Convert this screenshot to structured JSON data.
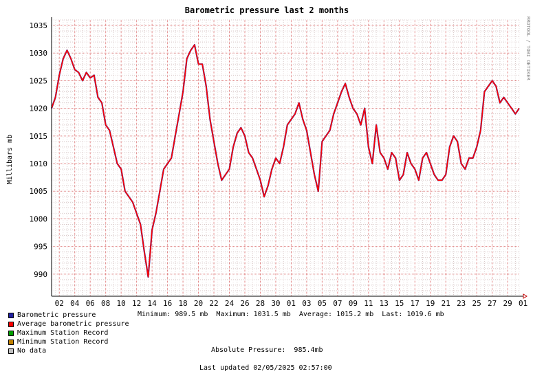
{
  "chart_data": {
    "type": "line",
    "title": "Barometric pressure last 2 months",
    "ylabel": "Millibars   mb",
    "watermark": "RRDTOOL / TOBI OETIKER",
    "ylim": [
      986,
      1036
    ],
    "yticks": [
      990,
      995,
      1000,
      1005,
      1010,
      1015,
      1020,
      1025,
      1030,
      1035
    ],
    "xlim": [
      0,
      60.5
    ],
    "x_tick_labels": [
      "02",
      "04",
      "06",
      "08",
      "10",
      "12",
      "14",
      "16",
      "18",
      "20",
      "22",
      "24",
      "26",
      "28",
      "30",
      "01",
      "03",
      "05",
      "07",
      "09",
      "11",
      "13",
      "15",
      "17",
      "19",
      "21",
      "23",
      "25",
      "27",
      "29",
      "01"
    ],
    "series": [
      {
        "name": "Barometric pressure",
        "color": "#2020a0",
        "x": [
          0,
          0.5,
          1,
          1.5,
          2,
          2.5,
          3,
          3.5,
          4,
          4.5,
          5,
          5.5,
          6,
          6.5,
          7,
          7.5,
          8,
          8.5,
          9,
          9.5,
          10,
          10.5,
          11,
          11.5,
          12,
          12.5,
          13,
          13.5,
          14,
          14.5,
          15,
          15.5,
          16,
          16.5,
          17,
          17.5,
          18,
          18.5,
          19,
          19.5,
          20,
          20.5,
          21,
          21.5,
          22,
          22.5,
          23,
          23.5,
          24,
          24.5,
          25,
          25.5,
          26,
          26.5,
          27,
          27.5,
          28,
          28.5,
          29,
          29.5,
          30,
          30.5,
          31,
          31.5,
          32,
          32.5,
          33,
          33.5,
          34,
          34.5,
          35,
          35.5,
          36,
          36.5,
          37,
          37.5,
          38,
          38.5,
          39,
          39.5,
          40,
          40.5,
          41,
          41.5,
          42,
          42.5,
          43,
          43.5,
          44,
          44.5,
          45,
          45.5,
          46,
          46.5,
          47,
          47.5,
          48,
          48.5,
          49,
          49.5,
          50,
          50.5,
          51,
          51.5,
          52,
          52.5,
          53,
          53.5,
          54,
          54.5,
          55,
          55.5,
          56,
          56.5,
          57,
          57.5,
          58,
          58.5,
          59,
          59.5,
          60,
          60.5
        ],
        "values": [
          1020,
          1022,
          1026,
          1029,
          1030.5,
          1029,
          1027,
          1026.5,
          1025,
          1026.5,
          1025.5,
          1026,
          1022,
          1021,
          1017,
          1016,
          1013,
          1010,
          1009,
          1005,
          1004,
          1003,
          1001,
          999,
          994,
          989.5,
          998,
          1001,
          1005,
          1009,
          1010,
          1011,
          1015,
          1019,
          1023,
          1029,
          1030.5,
          1031.5,
          1028,
          1028,
          1024,
          1018,
          1014,
          1010,
          1007,
          1008,
          1009,
          1013,
          1015.5,
          1016.5,
          1015,
          1012,
          1011,
          1009,
          1007,
          1004,
          1006,
          1009,
          1011,
          1010,
          1013,
          1017,
          1018,
          1019,
          1021,
          1018,
          1016,
          1012,
          1008,
          1005,
          1014,
          1015,
          1016,
          1019,
          1021,
          1023,
          1024.5,
          1022,
          1020,
          1019,
          1017,
          1020,
          1013,
          1010,
          1017,
          1012,
          1011,
          1009,
          1012,
          1011,
          1007,
          1008,
          1012,
          1010,
          1009,
          1007,
          1011,
          1012,
          1010,
          1008,
          1007,
          1007,
          1008,
          1013,
          1015,
          1014,
          1010,
          1009,
          1011,
          1011,
          1013,
          1016,
          1023,
          1024,
          1025,
          1024,
          1021,
          1022,
          1021,
          1020,
          1019,
          1020
        ]
      },
      {
        "name": "Average barometric pressure",
        "color": "#ff0000"
      },
      {
        "name": "Maximum Station Record",
        "color": "#00a000"
      },
      {
        "name": "Minimum Station Record",
        "color": "#c08000"
      },
      {
        "name": "No data",
        "color": "#c0c0c0"
      }
    ]
  },
  "stats": {
    "minimum_label": "Minimum:",
    "minimum_value": "989.5 mb",
    "maximum_label": "Maximum:",
    "maximum_value": "1031.5 mb",
    "average_label": "Average:",
    "average_value": "1015.2 mb",
    "last_label": "Last:",
    "last_value": "1019.6 mb"
  },
  "absolute_pressure_label": "Absolute Pressure:",
  "absolute_pressure_value": "985.4mb",
  "last_updated_label": "Last updated",
  "last_updated_value": "02/05/2025 02:57:00"
}
